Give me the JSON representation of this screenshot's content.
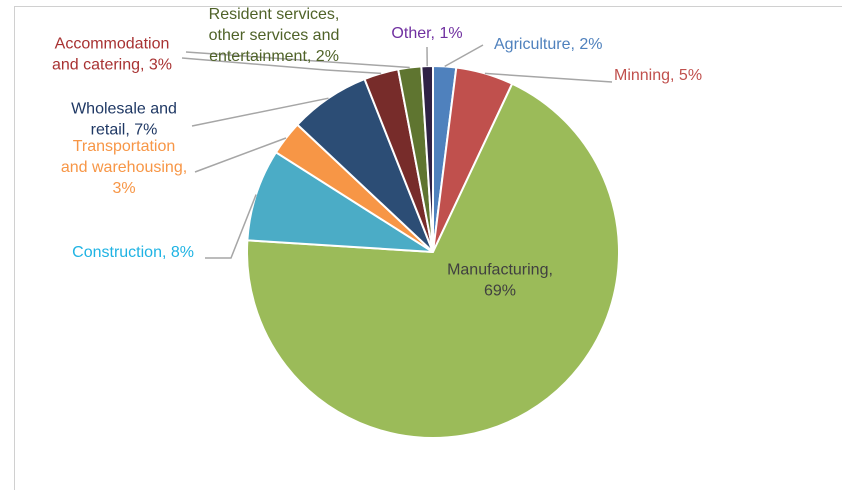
{
  "chart_data": {
    "type": "pie",
    "title": "",
    "series": [
      {
        "values": [
          2,
          5,
          69,
          8,
          3,
          7,
          3,
          2,
          1
        ],
        "categories": [
          "Agriculture",
          "Minning",
          "Manufacturing",
          "Construction",
          "Transportation and warehousing",
          "Wholesale and retail",
          "Accommodation and catering",
          "Resident services, other services and entertainment",
          "Other"
        ]
      }
    ],
    "colors": [
      "#4f81bd",
      "#c0504d",
      "#9bbb59",
      "#4bacc6",
      "#f79646",
      "#2c4d75",
      "#772c2a",
      "#5f7530",
      "#2e2145"
    ],
    "label_colors": [
      "#4f81bd",
      "#c0504d",
      "#404040",
      "#1fb3e3",
      "#f79646",
      "#1f3864",
      "#a83232",
      "#4f6228",
      "#7030a0"
    ],
    "data_labels": [
      [
        "Agriculture, 2%"
      ],
      [
        "Minning, 5%"
      ],
      [
        "Manufacturing,",
        "69%"
      ],
      [
        "Construction, 8%"
      ],
      [
        "Transportation",
        "and warehousing,",
        "3%"
      ],
      [
        "Wholesale and",
        "retail, 7%"
      ],
      [
        "Accommodation",
        "and catering, 3%"
      ],
      [
        "Resident services,",
        "other services and",
        "entertainment, 2%"
      ],
      [
        "Other, 1%"
      ]
    ]
  }
}
